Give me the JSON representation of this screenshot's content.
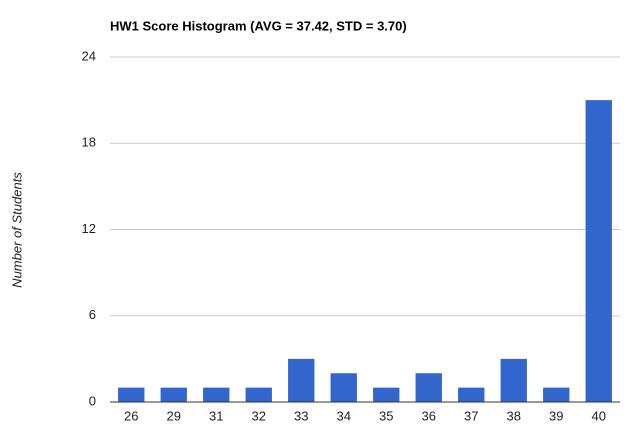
{
  "chart_data": {
    "type": "bar",
    "title": "HW1 Score Histogram (AVG = 37.42, STD = 3.70)",
    "y_label": "Number of Students",
    "categories": [
      "26",
      "29",
      "31",
      "32",
      "33",
      "34",
      "35",
      "36",
      "37",
      "38",
      "39",
      "40"
    ],
    "values": [
      1,
      1,
      1,
      1,
      3,
      2,
      1,
      2,
      1,
      3,
      1,
      21
    ],
    "color": "#3366cc",
    "ylim": [
      0,
      24
    ],
    "yticks": [
      0,
      6,
      12,
      18,
      24
    ],
    "grid": true
  }
}
